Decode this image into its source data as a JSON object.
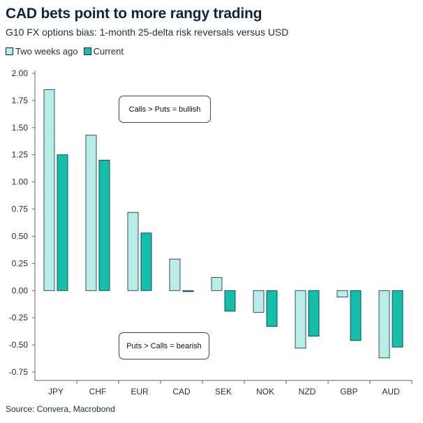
{
  "header": {
    "title": "CAD bets point to more rangy trading",
    "subtitle": "G10 FX options bias: 1-month 25-delta risk reversals versus USD"
  },
  "footer": {
    "source": "Source: Convera, Macrobond"
  },
  "colors": {
    "two_weeks_ago": "#b8ece6",
    "current": "#12bfa8",
    "outline": "#0b2545",
    "axis": "#666666"
  },
  "chart_data": {
    "type": "bar",
    "title": "CAD bets point to more rangy trading",
    "subtitle": "G10 FX options bias: 1-month 25-delta risk reversals versus USD",
    "categories": [
      "JPY",
      "CHF",
      "EUR",
      "CAD",
      "SEK",
      "NOK",
      "NZD",
      "GBP",
      "AUD"
    ],
    "series": [
      {
        "name": "Two weeks ago",
        "values": [
          1.85,
          1.43,
          0.72,
          0.29,
          0.12,
          -0.2,
          -0.53,
          -0.06,
          -0.62
        ]
      },
      {
        "name": "Current",
        "values": [
          1.25,
          1.2,
          0.53,
          -0.01,
          -0.19,
          -0.33,
          -0.42,
          -0.46,
          -0.52
        ]
      }
    ],
    "ylim": [
      -0.75,
      2.0
    ],
    "yticks": [
      "2.00",
      "1.75",
      "1.50",
      "1.25",
      "1.00",
      "0.75",
      "0.50",
      "0.25",
      "0.00",
      "-0.25",
      "-0.50",
      "-0.75"
    ],
    "legend_position": "top-left",
    "grid": false,
    "annotations": [
      "Calls > Puts = bullish",
      "Puts > Calls = bearish"
    ]
  }
}
